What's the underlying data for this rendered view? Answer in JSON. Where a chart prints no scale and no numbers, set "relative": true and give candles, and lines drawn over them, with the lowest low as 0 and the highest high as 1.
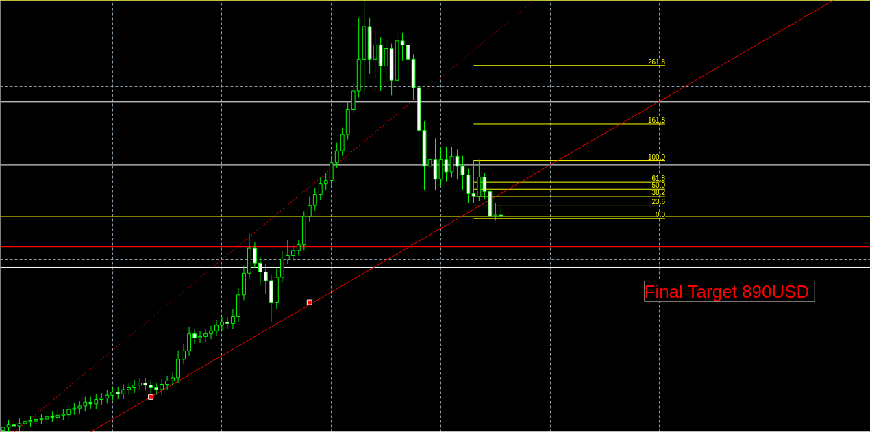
{
  "chart_data": {
    "type": "candlestick",
    "relative": true,
    "color": "#00ff00",
    "grid": true,
    "tick_labels": false,
    "categories": [
      null,
      null,
      null,
      null,
      null,
      null,
      null,
      null,
      null,
      null,
      null,
      null,
      null,
      null,
      null,
      null,
      null,
      null,
      null,
      null,
      null,
      null,
      null,
      null,
      null,
      null,
      null,
      null,
      null,
      null,
      null,
      null,
      null,
      null,
      null,
      null,
      null,
      null,
      null,
      null,
      null,
      null,
      null,
      null,
      null,
      null,
      null,
      null,
      null,
      null,
      null,
      null,
      null,
      null,
      null,
      null,
      null,
      null,
      null,
      null,
      null,
      null,
      null,
      null,
      null,
      null,
      null,
      null,
      null,
      null,
      null,
      null,
      null,
      null,
      null,
      null,
      null,
      null,
      null,
      null,
      null,
      null,
      null,
      null,
      null,
      null,
      null,
      null,
      null,
      null,
      null,
      null,
      null,
      null,
      null,
      null,
      null,
      null,
      null,
      null,
      null,
      null,
      null,
      null,
      null,
      null,
      null,
      null,
      null,
      null,
      null,
      null,
      null,
      null,
      null,
      null,
      null,
      null,
      null,
      null,
      null,
      null,
      null,
      null,
      null,
      null,
      null,
      null,
      null,
      null,
      null,
      null,
      null,
      null,
      null,
      null,
      null,
      null,
      null,
      null,
      null,
      null,
      null,
      null,
      null,
      null,
      null,
      null,
      null,
      null,
      null,
      null,
      null,
      null,
      null,
      null,
      null,
      null,
      null
    ],
    "ohlc": [
      [
        0.005,
        0.024,
        0.0,
        0.012
      ],
      [
        0.012,
        0.029,
        0.0,
        0.017
      ],
      [
        0.017,
        0.029,
        0.003,
        0.015
      ],
      [
        0.015,
        0.032,
        0.003,
        0.02
      ],
      [
        0.02,
        0.037,
        0.008,
        0.025
      ],
      [
        0.025,
        0.038,
        0.013,
        0.026
      ],
      [
        0.026,
        0.042,
        0.014,
        0.03
      ],
      [
        0.03,
        0.043,
        0.018,
        0.031
      ],
      [
        0.031,
        0.048,
        0.019,
        0.036
      ],
      [
        0.036,
        0.048,
        0.023,
        0.035
      ],
      [
        0.035,
        0.052,
        0.023,
        0.04
      ],
      [
        0.04,
        0.053,
        0.028,
        0.041
      ],
      [
        0.041,
        0.065,
        0.029,
        0.053
      ],
      [
        0.053,
        0.068,
        0.041,
        0.056
      ],
      [
        0.056,
        0.073,
        0.044,
        0.061
      ],
      [
        0.061,
        0.082,
        0.049,
        0.07
      ],
      [
        0.07,
        0.082,
        0.054,
        0.066
      ],
      [
        0.066,
        0.088,
        0.054,
        0.076
      ],
      [
        0.076,
        0.091,
        0.064,
        0.079
      ],
      [
        0.079,
        0.098,
        0.067,
        0.086
      ],
      [
        0.086,
        0.105,
        0.074,
        0.093
      ],
      [
        0.093,
        0.105,
        0.077,
        0.089
      ],
      [
        0.089,
        0.111,
        0.077,
        0.099
      ],
      [
        0.099,
        0.115,
        0.087,
        0.103
      ],
      [
        0.103,
        0.121,
        0.091,
        0.109
      ],
      [
        0.109,
        0.126,
        0.097,
        0.114
      ],
      [
        0.114,
        0.126,
        0.097,
        0.109
      ],
      [
        0.109,
        0.121,
        0.091,
        0.103
      ],
      [
        0.103,
        0.115,
        0.087,
        0.099
      ],
      [
        0.099,
        0.123,
        0.087,
        0.111
      ],
      [
        0.111,
        0.131,
        0.099,
        0.119
      ],
      [
        0.119,
        0.138,
        0.107,
        0.126
      ],
      [
        0.126,
        0.19,
        0.114,
        0.169
      ],
      [
        0.169,
        0.205,
        0.157,
        0.189
      ],
      [
        0.189,
        0.245,
        0.177,
        0.228
      ],
      [
        0.228,
        0.24,
        0.205,
        0.219
      ],
      [
        0.219,
        0.234,
        0.207,
        0.222
      ],
      [
        0.222,
        0.24,
        0.21,
        0.228
      ],
      [
        0.228,
        0.247,
        0.216,
        0.235
      ],
      [
        0.235,
        0.26,
        0.223,
        0.248
      ],
      [
        0.248,
        0.267,
        0.236,
        0.255
      ],
      [
        0.255,
        0.267,
        0.24,
        0.252
      ],
      [
        0.252,
        0.285,
        0.24,
        0.268
      ],
      [
        0.268,
        0.335,
        0.256,
        0.318
      ],
      [
        0.318,
        0.385,
        0.306,
        0.368
      ],
      [
        0.368,
        0.46,
        0.356,
        0.427
      ],
      [
        0.427,
        0.44,
        0.38,
        0.392
      ],
      [
        0.392,
        0.405,
        0.34,
        0.371
      ],
      [
        0.371,
        0.39,
        0.32,
        0.351
      ],
      [
        0.351,
        0.365,
        0.255,
        0.301
      ],
      [
        0.301,
        0.38,
        0.285,
        0.359
      ],
      [
        0.359,
        0.42,
        0.347,
        0.401
      ],
      [
        0.401,
        0.445,
        0.389,
        0.409
      ],
      [
        0.409,
        0.433,
        0.397,
        0.421
      ],
      [
        0.421,
        0.446,
        0.409,
        0.434
      ],
      [
        0.434,
        0.512,
        0.422,
        0.5
      ],
      [
        0.5,
        0.545,
        0.488,
        0.525
      ],
      [
        0.525,
        0.565,
        0.513,
        0.55
      ],
      [
        0.55,
        0.59,
        0.538,
        0.575
      ],
      [
        0.575,
        0.6,
        0.56,
        0.583
      ],
      [
        0.583,
        0.64,
        0.571,
        0.624
      ],
      [
        0.624,
        0.67,
        0.612,
        0.652
      ],
      [
        0.652,
        0.705,
        0.64,
        0.69
      ],
      [
        0.69,
        0.765,
        0.678,
        0.748
      ],
      [
        0.748,
        0.81,
        0.736,
        0.79
      ],
      [
        0.79,
        0.96,
        0.775,
        0.864
      ],
      [
        0.864,
        1.0,
        0.78,
        0.939
      ],
      [
        0.939,
        0.96,
        0.83,
        0.864
      ],
      [
        0.864,
        0.925,
        0.82,
        0.897
      ],
      [
        0.897,
        0.915,
        0.79,
        0.848
      ],
      [
        0.848,
        0.91,
        0.82,
        0.889
      ],
      [
        0.889,
        0.9,
        0.78,
        0.815
      ],
      [
        0.815,
        0.93,
        0.8,
        0.906
      ],
      [
        0.906,
        0.925,
        0.86,
        0.897
      ],
      [
        0.897,
        0.91,
        0.83,
        0.864
      ],
      [
        0.864,
        0.875,
        0.77,
        0.798
      ],
      [
        0.798,
        0.81,
        0.64,
        0.699
      ],
      [
        0.699,
        0.72,
        0.56,
        0.616
      ],
      [
        0.616,
        0.69,
        0.57,
        0.632
      ],
      [
        0.632,
        0.68,
        0.56,
        0.586
      ],
      [
        0.586,
        0.66,
        0.57,
        0.632
      ],
      [
        0.632,
        0.66,
        0.58,
        0.603
      ],
      [
        0.603,
        0.66,
        0.59,
        0.639
      ],
      [
        0.639,
        0.655,
        0.585,
        0.616
      ],
      [
        0.616,
        0.64,
        0.56,
        0.596
      ],
      [
        0.596,
        0.61,
        0.53,
        0.553
      ],
      [
        0.553,
        0.63,
        0.53,
        0.546
      ],
      [
        0.546,
        0.632,
        0.535,
        0.591
      ],
      [
        0.591,
        0.6,
        0.54,
        0.558
      ],
      [
        0.558,
        0.57,
        0.49,
        0.5
      ],
      [
        0.5,
        0.53,
        0.49,
        0.503
      ],
      [
        0.503,
        0.525,
        0.49,
        0.5
      ],
      null,
      null,
      null,
      null,
      null,
      null,
      null,
      null,
      null,
      null,
      null,
      null,
      null,
      null,
      null,
      null,
      null,
      null,
      null,
      null,
      null,
      null,
      null,
      null,
      null,
      null,
      null,
      null,
      null,
      null,
      null,
      null,
      null,
      null,
      null,
      null,
      null,
      null,
      null,
      null,
      null,
      null,
      null,
      null,
      null,
      null,
      null,
      null,
      null,
      null,
      null,
      null,
      null,
      null,
      null,
      null,
      null,
      null,
      null,
      null,
      null,
      null,
      null,
      null,
      null,
      null,
      null
    ],
    "series": [
      {
        "type": "line",
        "color": "#ff0000",
        "line_style": "solid",
        "values": [
          null,
          null,
          null,
          null,
          null,
          null,
          null,
          null,
          null,
          null,
          null,
          null,
          null,
          null,
          null,
          null,
          0.001,
          null,
          null,
          null,
          null,
          null,
          null,
          null,
          null,
          null,
          null,
          null,
          null,
          null,
          null,
          null,
          null,
          null,
          null,
          null,
          null,
          null,
          null,
          null,
          null,
          null,
          null,
          null,
          null,
          null,
          null,
          null,
          null,
          null,
          null,
          null,
          null,
          null,
          null,
          null,
          null,
          null,
          null,
          null,
          null,
          null,
          null,
          null,
          null,
          null,
          null,
          null,
          null,
          null,
          null,
          null,
          null,
          null,
          null,
          null,
          null,
          null,
          null,
          null,
          null,
          null,
          null,
          null,
          null,
          null,
          null,
          null,
          null,
          null,
          null,
          null,
          null,
          null,
          null,
          null,
          null,
          null,
          null,
          null,
          null,
          null,
          null,
          null,
          null,
          null,
          null,
          null,
          null,
          null,
          null,
          null,
          null,
          null,
          null,
          null,
          null,
          null,
          null,
          null,
          null,
          null,
          null,
          null,
          null,
          null,
          null,
          null,
          null,
          null,
          null,
          null,
          null,
          null,
          null,
          null,
          null,
          null,
          null,
          null,
          null,
          null,
          null,
          null,
          null,
          null,
          null,
          null,
          null,
          null,
          null,
          null,
          null,
          null,
          null,
          1.024,
          null,
          null,
          null
        ]
      },
      {
        "type": "line",
        "color": "#ff0000",
        "line_style": "dotted",
        "values": [
          null,
          null,
          0.0,
          null,
          null,
          null,
          null,
          null,
          null,
          null,
          null,
          null,
          null,
          null,
          null,
          null,
          null,
          null,
          null,
          null,
          null,
          null,
          null,
          null,
          null,
          null,
          null,
          null,
          null,
          null,
          null,
          null,
          null,
          null,
          null,
          null,
          null,
          null,
          null,
          null,
          null,
          null,
          null,
          null,
          null,
          null,
          null,
          null,
          null,
          null,
          null,
          null,
          null,
          null,
          null,
          null,
          null,
          null,
          null,
          null,
          null,
          null,
          null,
          null,
          null,
          null,
          null,
          null,
          null,
          null,
          null,
          null,
          null,
          null,
          null,
          null,
          null,
          null,
          null,
          null,
          null,
          null,
          null,
          null,
          null,
          null,
          null,
          null,
          null,
          null,
          null,
          null,
          null,
          null,
          null,
          null,
          null,
          1.0,
          null,
          null,
          null,
          null,
          null,
          null,
          null,
          null,
          null,
          null,
          null,
          null,
          null,
          null,
          null,
          null,
          null,
          null,
          null,
          null,
          null,
          null,
          null,
          null,
          null,
          null,
          null,
          null,
          null,
          null,
          null,
          null,
          null,
          null,
          null,
          null,
          null,
          null,
          null,
          null,
          null,
          null,
          null,
          null,
          null,
          null,
          null,
          null,
          null,
          null,
          null,
          null,
          null,
          null,
          null,
          null,
          null,
          null,
          null,
          null,
          null
        ]
      },
      {
        "type": "scatter",
        "color": "#ff0000",
        "marker": "square",
        "values": [
          null,
          null,
          null,
          null,
          null,
          null,
          null,
          null,
          null,
          null,
          null,
          null,
          null,
          null,
          null,
          null,
          null,
          null,
          null,
          null,
          null,
          null,
          null,
          null,
          null,
          null,
          null,
          0.082,
          null,
          null,
          null,
          null,
          null,
          null,
          null,
          null,
          null,
          null,
          null,
          null,
          null,
          null,
          null,
          null,
          null,
          null,
          null,
          null,
          null,
          null,
          null,
          null,
          null,
          null,
          null,
          null,
          0.301,
          null,
          null,
          null,
          null,
          null,
          null,
          null,
          null,
          null,
          null,
          null,
          null,
          null,
          null,
          null,
          null,
          null,
          null,
          null,
          null,
          null,
          null,
          null,
          null,
          null,
          null,
          null,
          null,
          null,
          null,
          null,
          null,
          null,
          null,
          null,
          null,
          null,
          null,
          null,
          null,
          null,
          null,
          null,
          null,
          null,
          null,
          null,
          null,
          null,
          null,
          null,
          null,
          null,
          null,
          null,
          null,
          null,
          null,
          null,
          null,
          null,
          null,
          null,
          null,
          null,
          null,
          null,
          null,
          null,
          null,
          null,
          null,
          null,
          null,
          null,
          null,
          null,
          null,
          null,
          null,
          null,
          null,
          null,
          null,
          null,
          null,
          null,
          null,
          null,
          null,
          null,
          null,
          null,
          null,
          null,
          null,
          null,
          null,
          null,
          null,
          null,
          null
        ]
      }
    ],
    "ref_lines": [
      {
        "axis": "y",
        "value": 1.0,
        "color": "#ffff00"
      },
      {
        "axis": "y",
        "value": 0.765,
        "color": "#ffffff"
      },
      {
        "axis": "y",
        "value": 0.619,
        "color": "#ffffff"
      },
      {
        "axis": "y",
        "value": 0.5,
        "color": "#ffff00"
      },
      {
        "axis": "y",
        "value": 0.43,
        "color": "#ff0000"
      },
      {
        "axis": "y",
        "value": 0.382,
        "color": "#ffffff"
      },
      {
        "axis": "y",
        "value": 0.002,
        "color": "#ffffff"
      },
      {
        "axis": "y",
        "value": 0.849,
        "color": "#ffff00"
      },
      {
        "axis": "y",
        "value": 0.714,
        "color": "#ffff00"
      },
      {
        "axis": "y",
        "value": 0.629,
        "color": "#ffff00"
      },
      {
        "axis": "y",
        "value": 0.579,
        "color": "#ffff00"
      },
      {
        "axis": "y",
        "value": 0.563,
        "color": "#ffff00"
      },
      {
        "axis": "y",
        "value": 0.546,
        "color": "#ffff00"
      },
      {
        "axis": "y",
        "value": 0.526,
        "color": "#ffff00"
      },
      {
        "axis": "y",
        "value": 0.495,
        "color": "#ffff00"
      }
    ],
    "annotations": [
      {
        "text": "261.8",
        "y": 0.849
      },
      {
        "text": "161.8",
        "y": 0.714
      },
      {
        "text": "100.0",
        "y": 0.629
      },
      {
        "text": "61.8",
        "y": 0.579
      },
      {
        "text": "50.0",
        "y": 0.563
      },
      {
        "text": "38.2",
        "y": 0.546
      },
      {
        "text": "23.6",
        "y": 0.526
      },
      {
        "text": "0.0",
        "y": 0.495
      },
      "Final Target  890USD"
    ]
  }
}
